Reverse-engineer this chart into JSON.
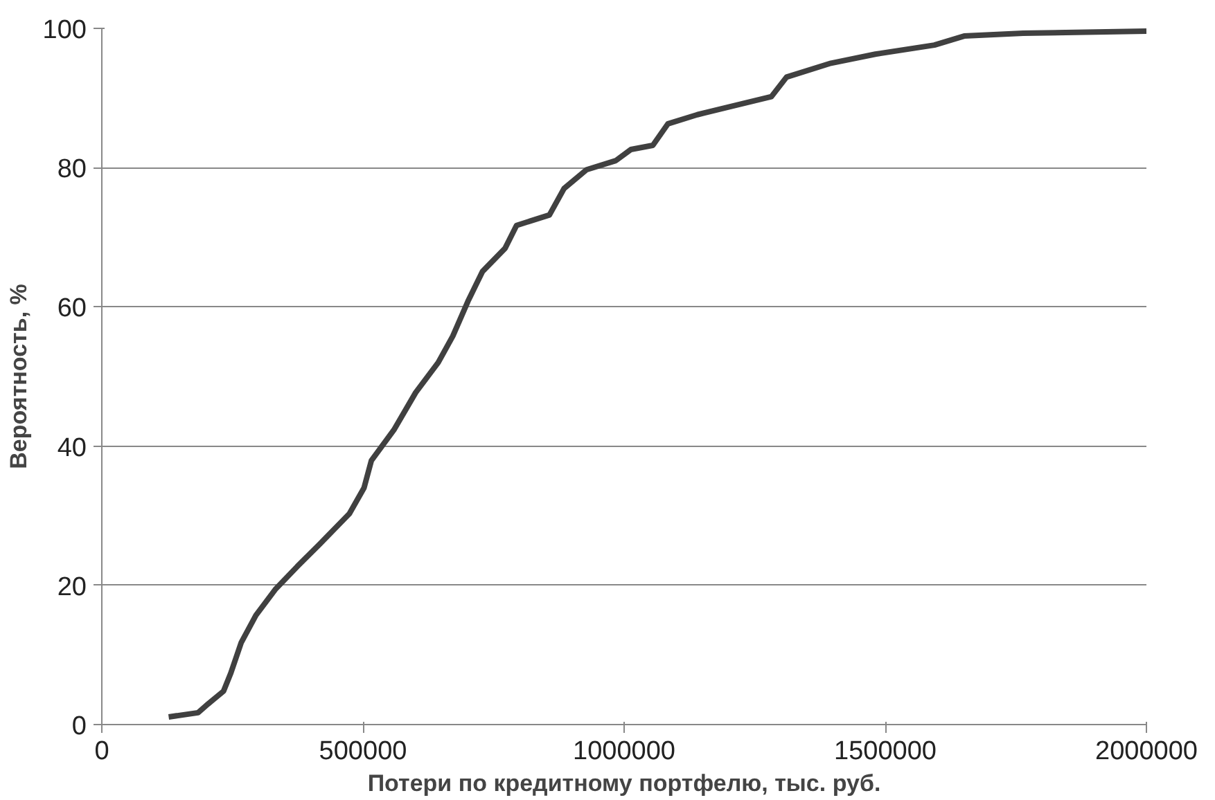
{
  "chart_data": {
    "type": "line",
    "xlabel": "Потери по кредитному портфелю, тыс. руб.",
    "ylabel": "Вероятность, %",
    "x": [
      128000,
      184000,
      204000,
      233000,
      247000,
      267000,
      295000,
      332000,
      374000,
      417000,
      474000,
      502000,
      516000,
      559000,
      601000,
      644000,
      672000,
      701000,
      729000,
      772000,
      794000,
      857000,
      885000,
      928000,
      984000,
      1013000,
      1055000,
      1084000,
      1140000,
      1211000,
      1282000,
      1311000,
      1396000,
      1481000,
      1594000,
      1651000,
      1764000,
      2000000
    ],
    "series": [
      {
        "color": "#404040",
        "values": [
          1.1,
          1.7,
          3,
          4.8,
          7.4,
          11.8,
          15.7,
          19.4,
          22.7,
          25.9,
          30.3,
          34,
          37.9,
          42.3,
          47.7,
          52,
          55.8,
          60.8,
          65.1,
          68.4,
          71.7,
          73.2,
          77,
          79.7,
          81,
          82.6,
          83.2,
          86.3,
          87.6,
          88.9,
          90.2,
          93,
          95,
          96.3,
          97.6,
          98.9,
          99.3,
          99.6
        ]
      }
    ],
    "xlim": [
      0,
      2000000
    ],
    "xticks": [
      0,
      500000,
      1000000,
      1500000,
      2000000
    ],
    "ylim": [
      0,
      100
    ],
    "yticks": [
      0,
      20,
      40,
      60,
      80,
      100
    ],
    "grid": "y",
    "marker": "none",
    "line_style": "solid"
  }
}
